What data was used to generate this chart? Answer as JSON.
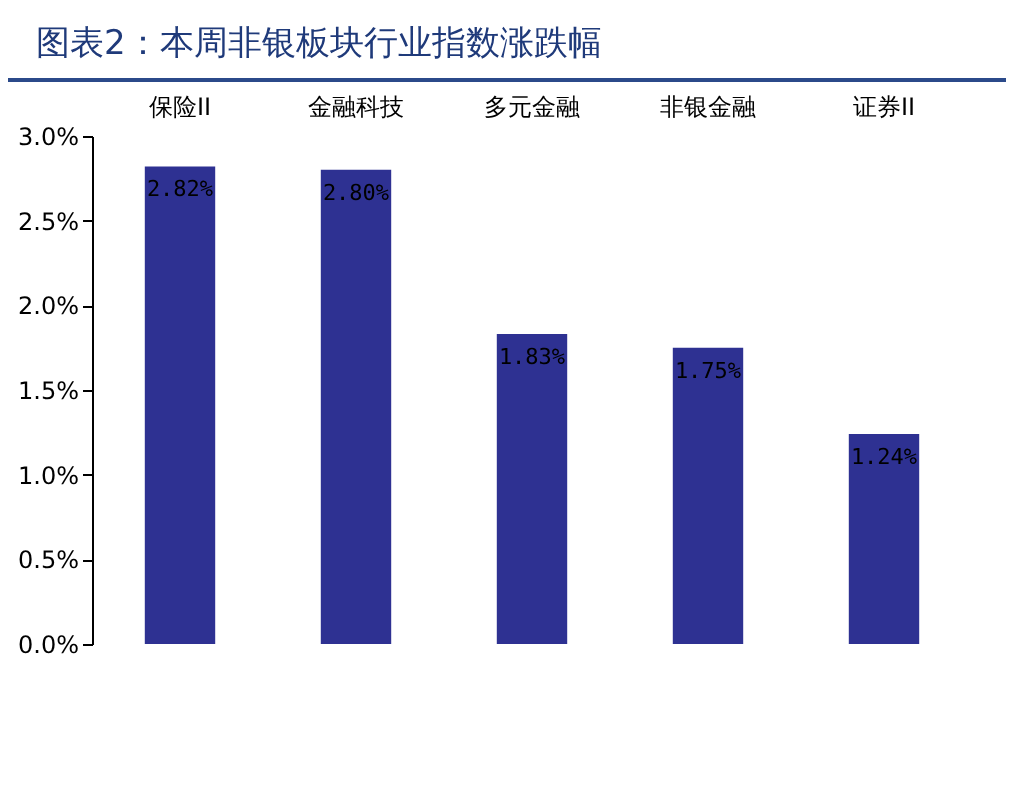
{
  "chart_data": {
    "type": "bar",
    "title": "图表2：本周非银板块行业指数涨跌幅",
    "categories": [
      "保险II",
      "金融科技",
      "多元金融",
      "非银金融",
      "证券II"
    ],
    "values": [
      2.82,
      2.8,
      1.83,
      1.75,
      1.24
    ],
    "value_labels": [
      "2.82%",
      "2.80%",
      "1.83%",
      "1.75%",
      "1.24%"
    ],
    "color": "#2e3192",
    "ylim": [
      0,
      3
    ],
    "yticks": [
      {
        "value": 0,
        "label": "0.0%"
      },
      {
        "value": 0.5,
        "label": "0.5%"
      },
      {
        "value": 1,
        "label": "1.0%"
      },
      {
        "value": 1.5,
        "label": "1.5%"
      },
      {
        "value": 2,
        "label": "2.0%"
      },
      {
        "value": 2.5,
        "label": "2.5%"
      },
      {
        "value": 3,
        "label": "3.0%"
      }
    ],
    "grid": false
  }
}
